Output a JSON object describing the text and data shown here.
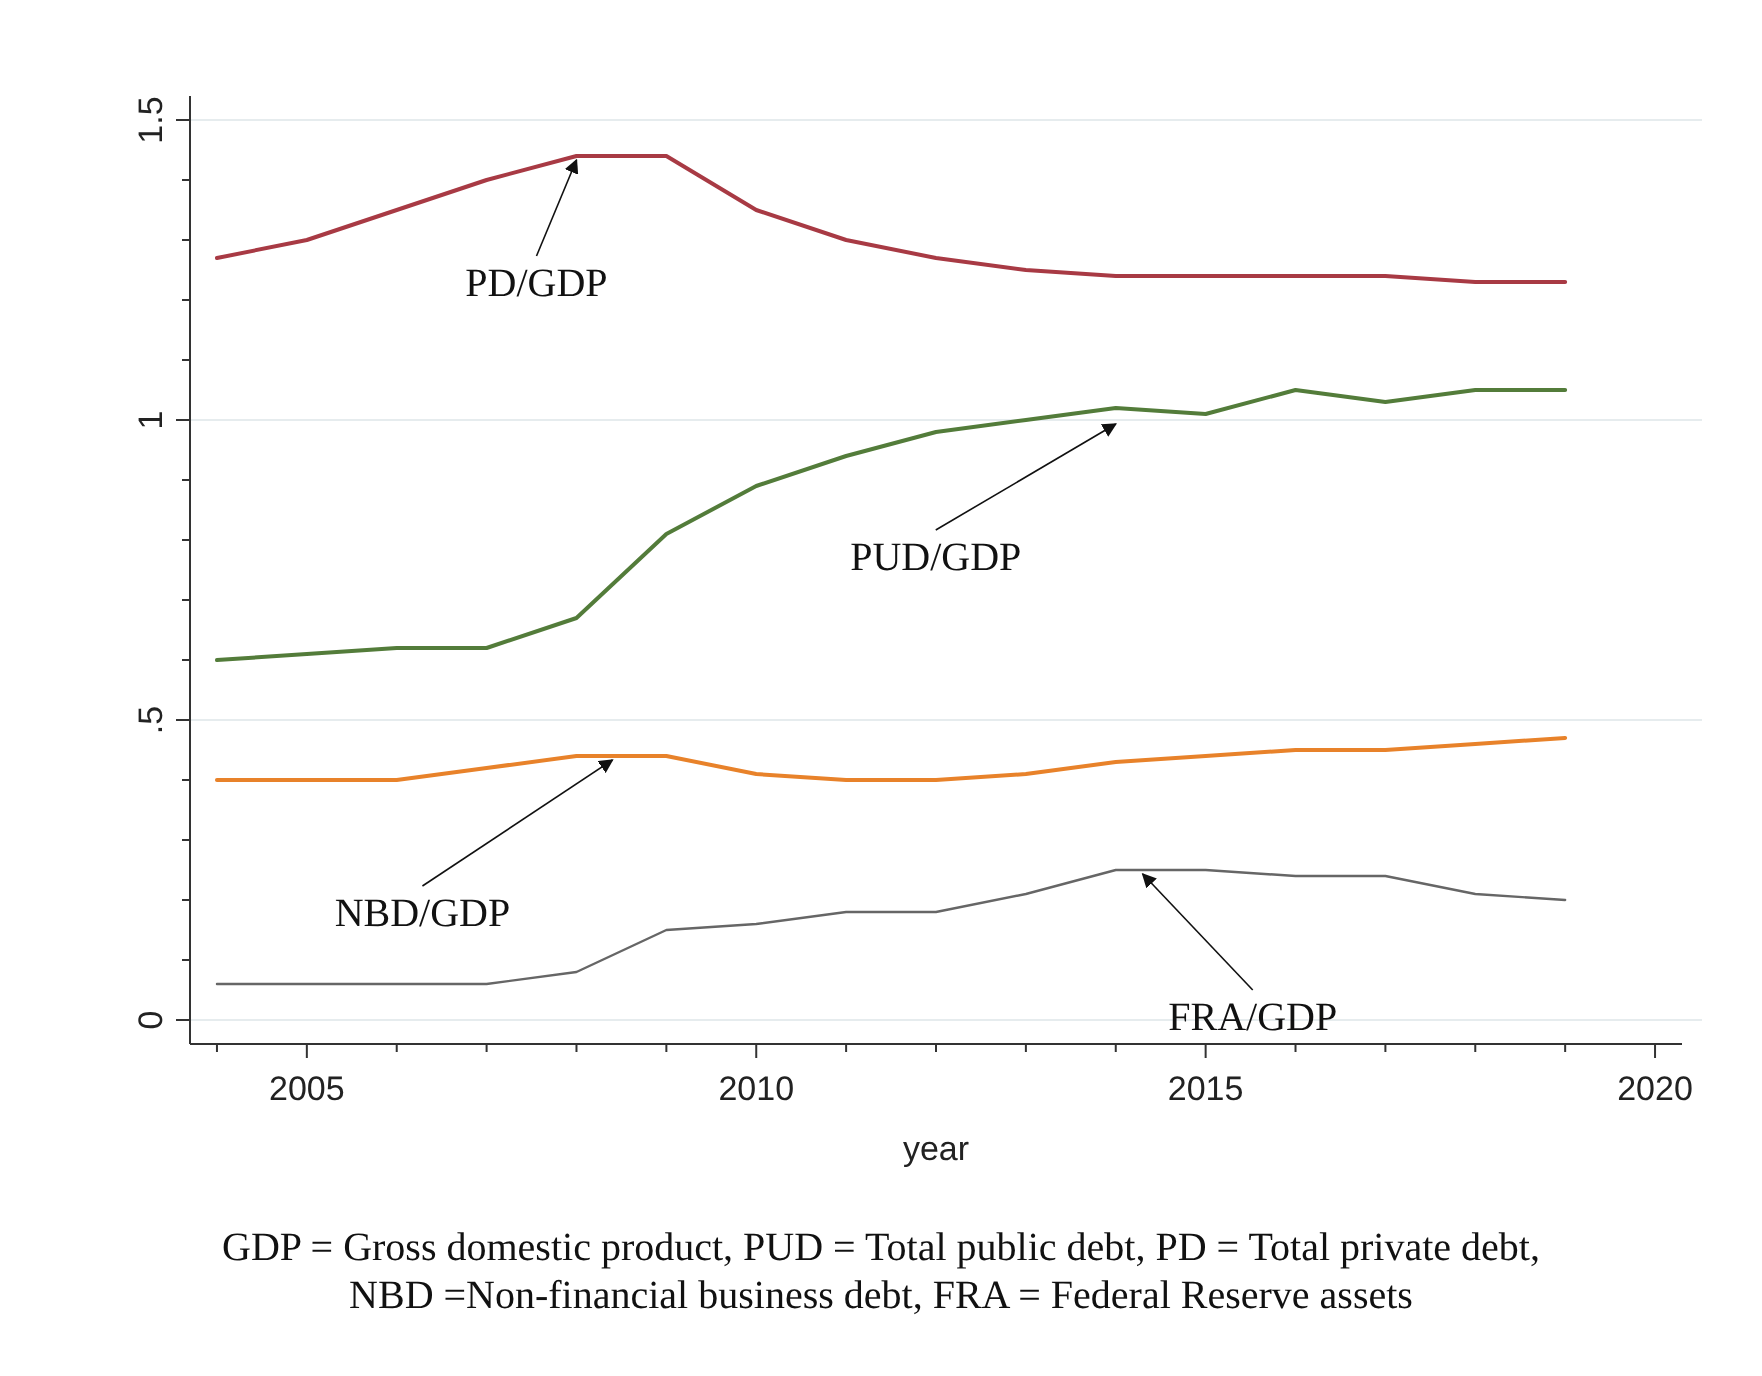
{
  "chart_data": {
    "type": "line",
    "xlabel": "year",
    "x": [
      2004,
      2005,
      2006,
      2007,
      2008,
      2009,
      2010,
      2011,
      2012,
      2013,
      2014,
      2015,
      2016,
      2017,
      2018,
      2019
    ],
    "series": [
      {
        "color": "#a83a44",
        "values": [
          1.27,
          1.3,
          1.35,
          1.4,
          1.44,
          1.44,
          1.35,
          1.3,
          1.27,
          1.25,
          1.24,
          1.24,
          1.24,
          1.24,
          1.23,
          1.23
        ]
      },
      {
        "color": "#537c3a",
        "values": [
          0.6,
          0.61,
          0.62,
          0.62,
          0.67,
          0.81,
          0.89,
          0.94,
          0.98,
          1.0,
          1.02,
          1.01,
          1.05,
          1.03,
          1.05,
          1.05
        ]
      },
      {
        "color": "#e8822a",
        "values": [
          0.4,
          0.4,
          0.4,
          0.42,
          0.44,
          0.44,
          0.41,
          0.4,
          0.4,
          0.41,
          0.43,
          0.44,
          0.45,
          0.45,
          0.46,
          0.47
        ]
      },
      {
        "color": "#666666",
        "values": [
          0.06,
          0.06,
          0.06,
          0.06,
          0.08,
          0.15,
          0.16,
          0.18,
          0.18,
          0.21,
          0.25,
          0.25,
          0.24,
          0.24,
          0.21,
          0.2
        ]
      }
    ],
    "xlim": [
      2003.7,
      2020.3
    ],
    "xticks": [
      {
        "value": 2004,
        "label": null
      },
      2005,
      {
        "value": 2006,
        "label": null
      },
      {
        "value": 2007,
        "label": null
      },
      {
        "value": 2008,
        "label": null
      },
      {
        "value": 2009,
        "label": null
      },
      2010,
      {
        "value": 2011,
        "label": null
      },
      {
        "value": 2012,
        "label": null
      },
      {
        "value": 2013,
        "label": null
      },
      {
        "value": 2014,
        "label": null
      },
      2015,
      {
        "value": 2016,
        "label": null
      },
      {
        "value": 2017,
        "label": null
      },
      {
        "value": 2018,
        "label": null
      },
      {
        "value": 2019,
        "label": null
      },
      2020
    ],
    "ylim": [
      -0.04,
      1.54
    ],
    "yticks": [
      0,
      {
        "value": 0.1,
        "label": null
      },
      {
        "value": 0.2,
        "label": null
      },
      {
        "value": 0.3,
        "label": null
      },
      {
        "value": 0.4,
        "label": null
      },
      {
        "value": 0.5,
        "label": ".5"
      },
      {
        "value": 0.6,
        "label": null
      },
      {
        "value": 0.7,
        "label": null
      },
      {
        "value": 0.8,
        "label": null
      },
      {
        "value": 0.9,
        "label": null
      },
      1,
      {
        "value": 1.1,
        "label": null
      },
      {
        "value": 1.2,
        "label": null
      },
      {
        "value": 1.3,
        "label": null
      },
      {
        "value": 1.4,
        "label": null
      },
      1.5
    ],
    "grid": "y",
    "marker": "none",
    "line_style": "solid",
    "annotations": [
      {
        "text": "PD/GDP",
        "x": 2008,
        "y": 1.44
      },
      {
        "text": "PUD/GDP",
        "x": 2014,
        "y": 1.0
      },
      {
        "text": "NBD/GDP",
        "x": 2008.4,
        "y": 0.44
      },
      {
        "text": "FRA/GDP",
        "x": 2014.3,
        "y": 0.25
      },
      "GDP = Gross domestic product, PUD = Total public debt,  PD = Total private debt,\nNBD =Non-financial business debt, FRA = Federal Reserve assets"
    ]
  }
}
